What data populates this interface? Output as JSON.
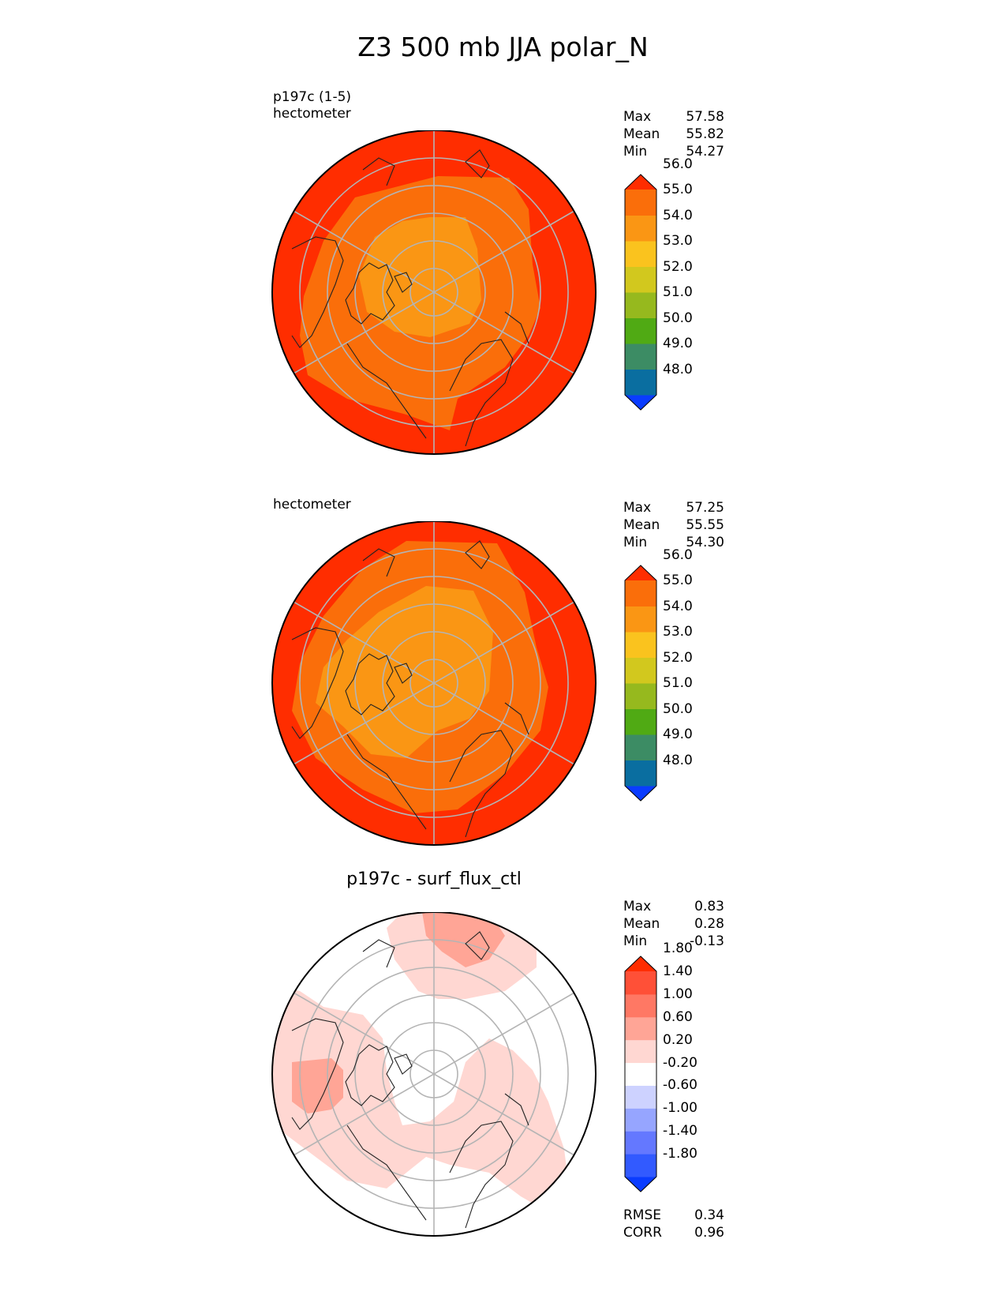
{
  "title": "Z3 500 mb JJA polar_N",
  "panels": [
    {
      "id": "test",
      "label_top": "p197c (1-5)",
      "units": "hectometer",
      "subtitle": "",
      "stats": [
        {
          "name": "Max",
          "value": "57.58"
        },
        {
          "name": "Mean",
          "value": "55.82"
        },
        {
          "name": "Min",
          "value": "54.27"
        }
      ],
      "colorbar": {
        "colors": [
          "#0a3cff",
          "#0a6ea0",
          "#3c8c64",
          "#50aa14",
          "#96b91e",
          "#d2c81e",
          "#fac31e",
          "#fa9614",
          "#fa6e0a",
          "#ff2d00"
        ],
        "ticks": [
          "48.0",
          "49.0",
          "50.0",
          "51.0",
          "52.0",
          "53.0",
          "54.0",
          "55.0",
          "56.0"
        ]
      }
    },
    {
      "id": "reference",
      "label_top": "",
      "units": "hectometer",
      "subtitle": "",
      "stats": [
        {
          "name": "Max",
          "value": "57.25"
        },
        {
          "name": "Mean",
          "value": "55.55"
        },
        {
          "name": "Min",
          "value": "54.30"
        }
      ],
      "colorbar": {
        "colors": [
          "#0a3cff",
          "#0a6ea0",
          "#3c8c64",
          "#50aa14",
          "#96b91e",
          "#d2c81e",
          "#fac31e",
          "#fa9614",
          "#fa6e0a",
          "#ff2d00"
        ],
        "ticks": [
          "48.0",
          "49.0",
          "50.0",
          "51.0",
          "52.0",
          "53.0",
          "54.0",
          "55.0",
          "56.0"
        ]
      }
    },
    {
      "id": "difference",
      "label_top": "",
      "units": "",
      "subtitle": "p197c - surf_flux_ctl",
      "stats": [
        {
          "name": "Max",
          "value": "0.83"
        },
        {
          "name": "Mean",
          "value": "0.28"
        },
        {
          "name": "Min",
          "value": "-0.13"
        }
      ],
      "metrics": [
        {
          "name": "RMSE",
          "value": "0.34"
        },
        {
          "name": "CORR",
          "value": "0.96"
        }
      ],
      "colorbar": {
        "colors": [
          "#0a3cff",
          "#325aff",
          "#6478ff",
          "#96a5ff",
          "#cdd2ff",
          "#ffffff",
          "#ffd7d2",
          "#ffa596",
          "#ff7864",
          "#ff5037",
          "#ff2d00"
        ],
        "ticks": [
          "-1.80",
          "-1.40",
          "-1.00",
          "-0.60",
          "-0.20",
          "0.20",
          "0.60",
          "1.00",
          "1.40",
          "1.80"
        ]
      }
    }
  ]
}
